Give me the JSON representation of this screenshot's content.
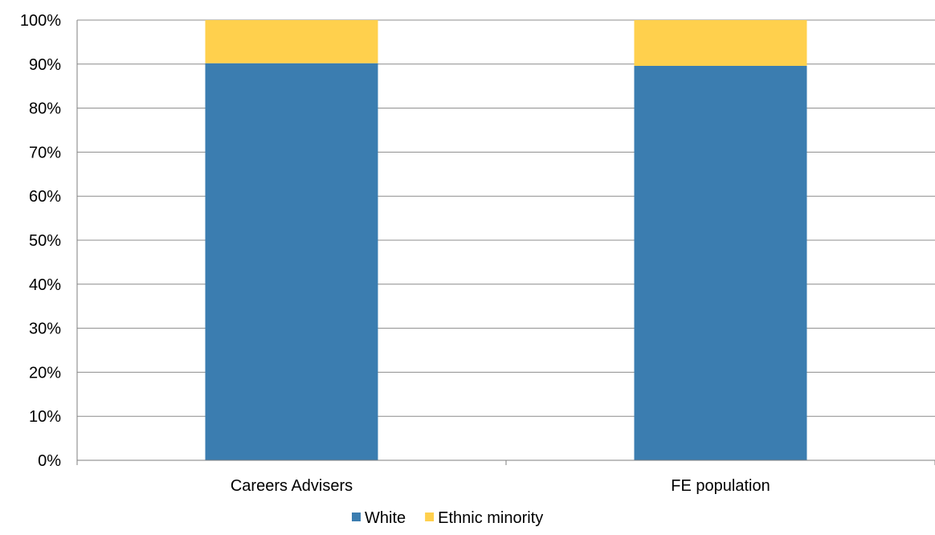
{
  "chart_data": {
    "type": "bar",
    "stacked": true,
    "categories": [
      "Careers Advisers",
      "FE population"
    ],
    "series": [
      {
        "name": "White",
        "values": [
          90.2,
          89.6
        ],
        "color": "#3b7db0"
      },
      {
        "name": "Ethnic minority",
        "values": [
          9.8,
          10.4
        ],
        "color": "#ffd04d"
      }
    ],
    "ylim": [
      0,
      100
    ],
    "yticks": [
      "0%",
      "10%",
      "20%",
      "30%",
      "40%",
      "50%",
      "60%",
      "70%",
      "80%",
      "90%",
      "100%"
    ],
    "title": "",
    "xlabel": "",
    "ylabel": "",
    "grid": true,
    "legend_position": "bottom"
  }
}
